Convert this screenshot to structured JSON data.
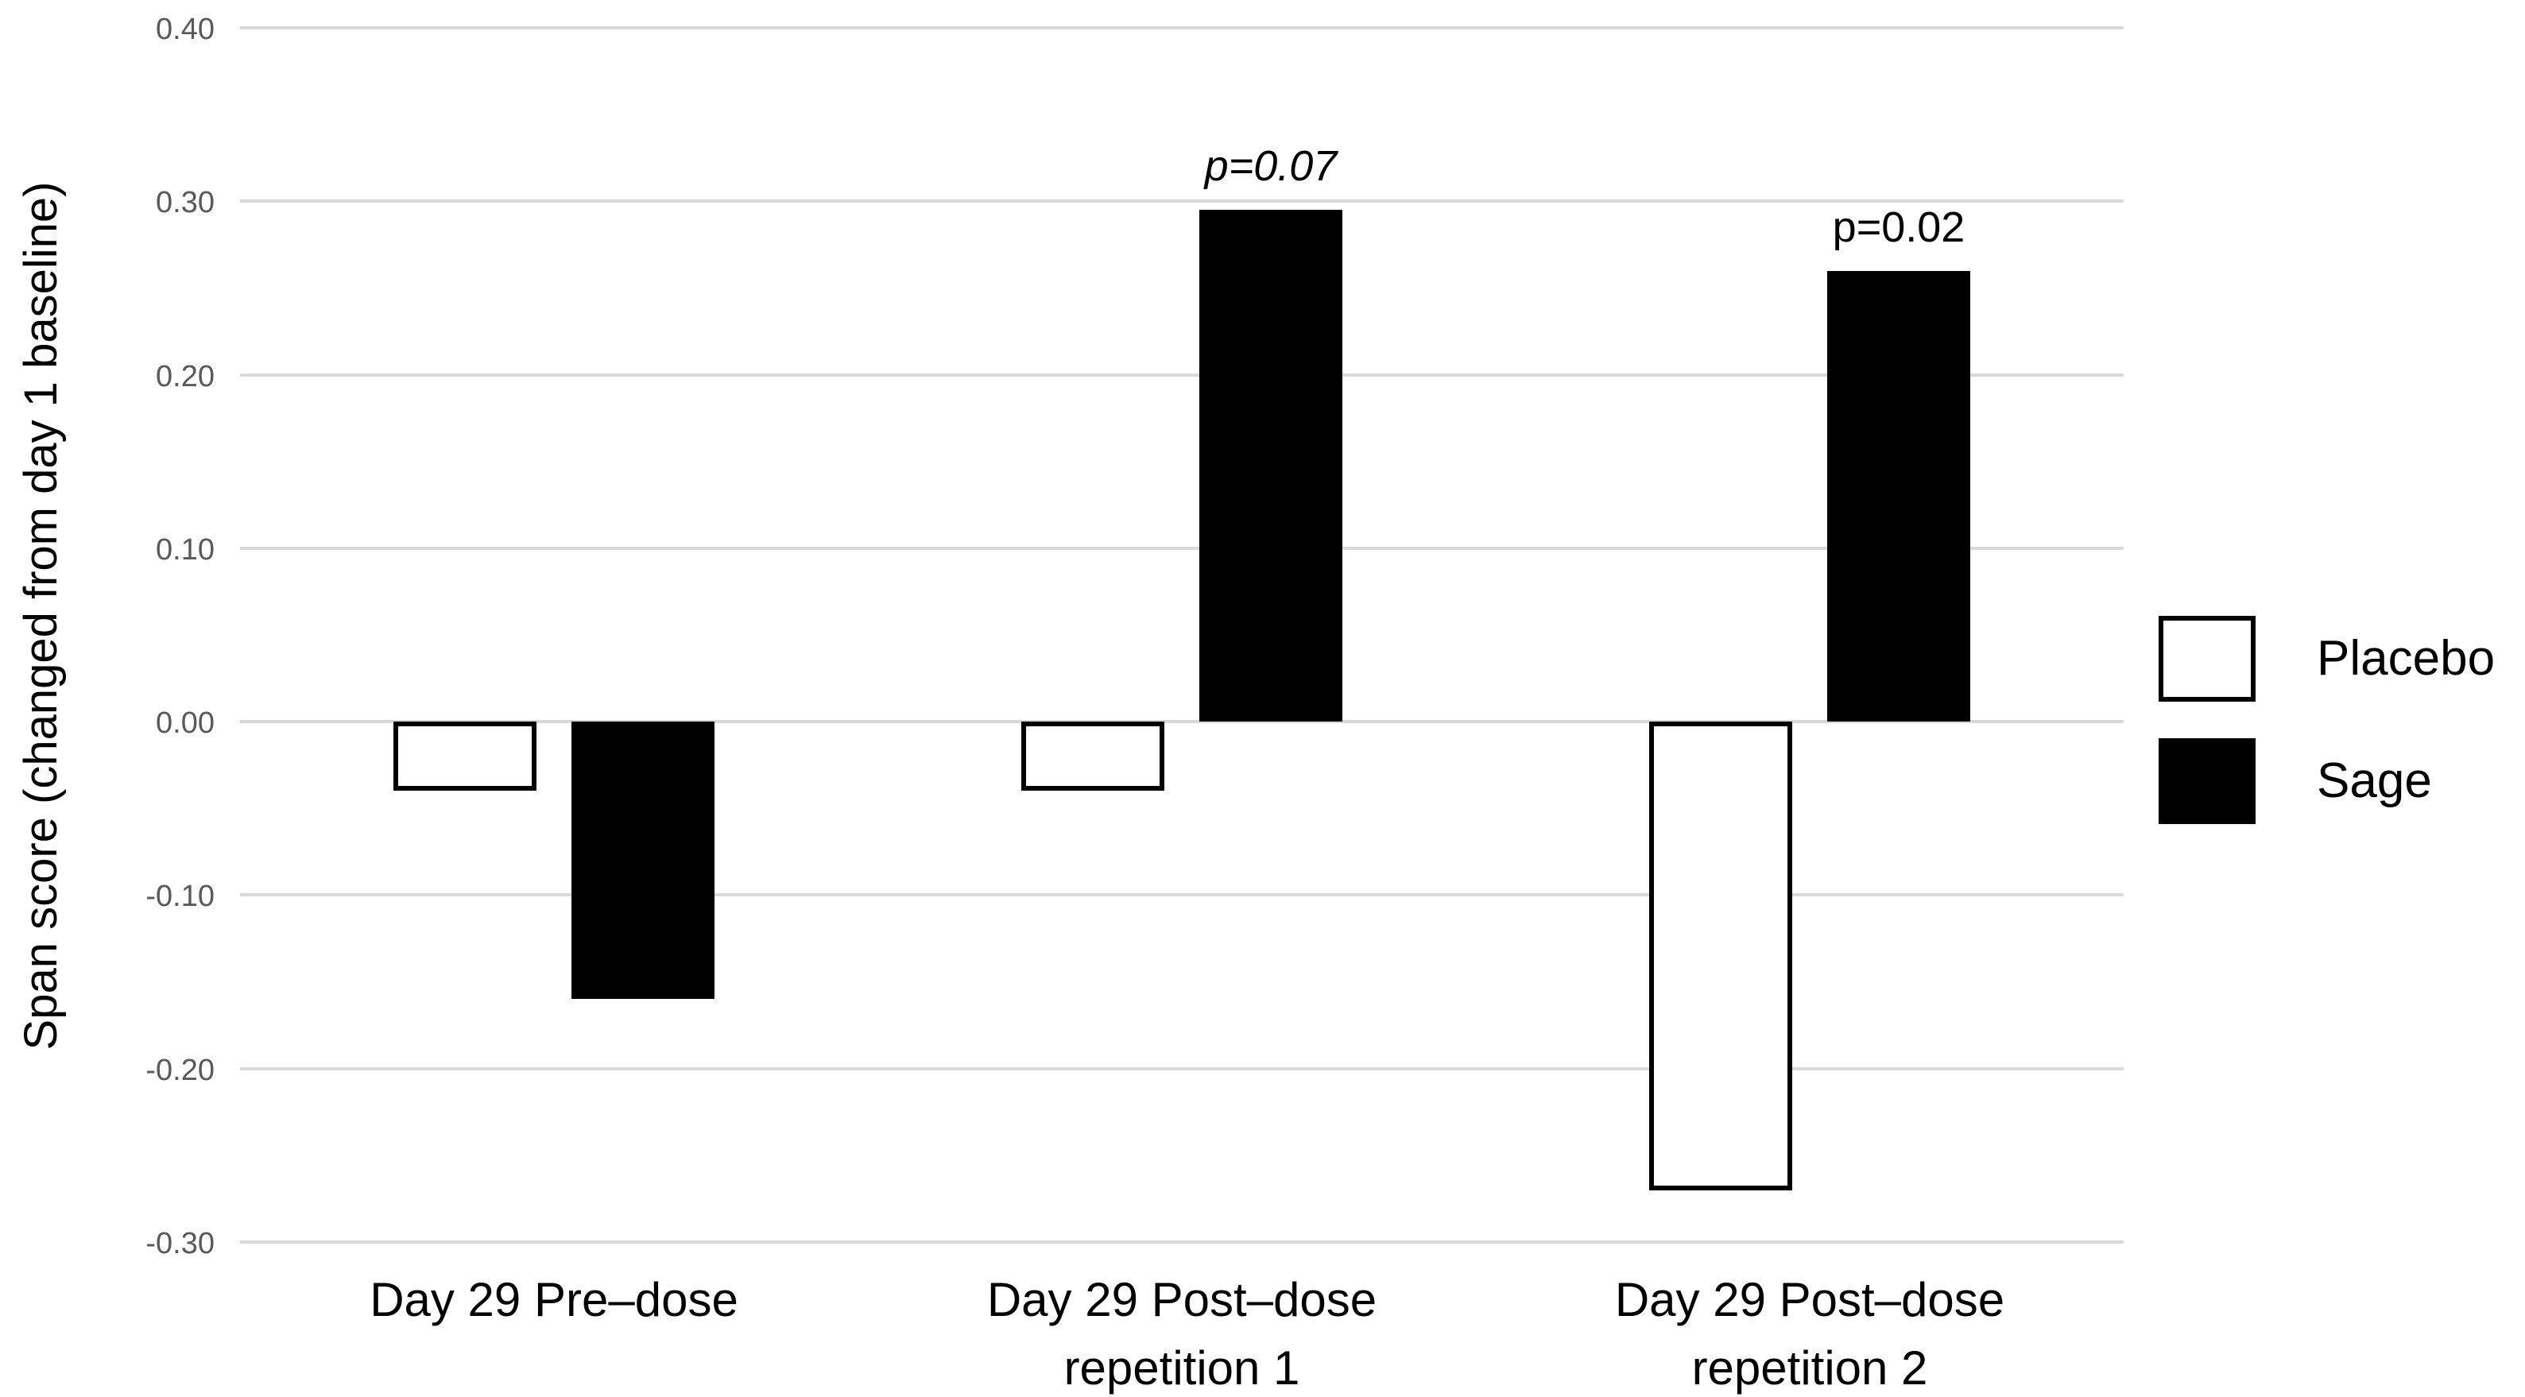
{
  "chart_data": {
    "type": "bar",
    "title": "",
    "ylabel": "Span score (changed from day 1 baseline)",
    "xlabel": "",
    "categories": [
      "Day 29 Pre–dose",
      "Day 29 Post–dose repetition 1",
      "Day 29 Post–dose repetition 2"
    ],
    "category_lines": [
      [
        "Day 29 Pre–dose"
      ],
      [
        "Day 29 Post–dose",
        "repetition 1"
      ],
      [
        "Day 29 Post–dose",
        "repetition 2"
      ]
    ],
    "series": [
      {
        "name": "Placebo",
        "values": [
          -0.04,
          -0.04,
          -0.27
        ],
        "fill": "#ffffff",
        "stroke": "#000000"
      },
      {
        "name": "Sage",
        "values": [
          -0.16,
          0.295,
          0.26
        ],
        "fill": "#000000",
        "stroke": "#000000"
      }
    ],
    "annotations": [
      {
        "text": "p=0.07",
        "italic": true,
        "category_index": 1,
        "series_index": 1
      },
      {
        "text": "p=0.02",
        "italic": false,
        "category_index": 2,
        "series_index": 1
      }
    ],
    "yticks": {
      "values": [
        0.4,
        0.3,
        0.2,
        0.1,
        0.0,
        -0.1,
        -0.2,
        -0.3
      ],
      "labels": [
        "0.40",
        "0.30",
        "0.20",
        "0.10",
        "0.00",
        "-0.10",
        "-0.20",
        "-0.30"
      ]
    },
    "ylim": [
      -0.3,
      0.4
    ],
    "grid": "horizontal-only",
    "legend_position": "right",
    "colors": {
      "gridline": "#d9d9d9",
      "tick_label": "#595959",
      "text": "#000000",
      "placebo_fill": "#ffffff",
      "sage_fill": "#000000",
      "background": "#ffffff"
    }
  }
}
